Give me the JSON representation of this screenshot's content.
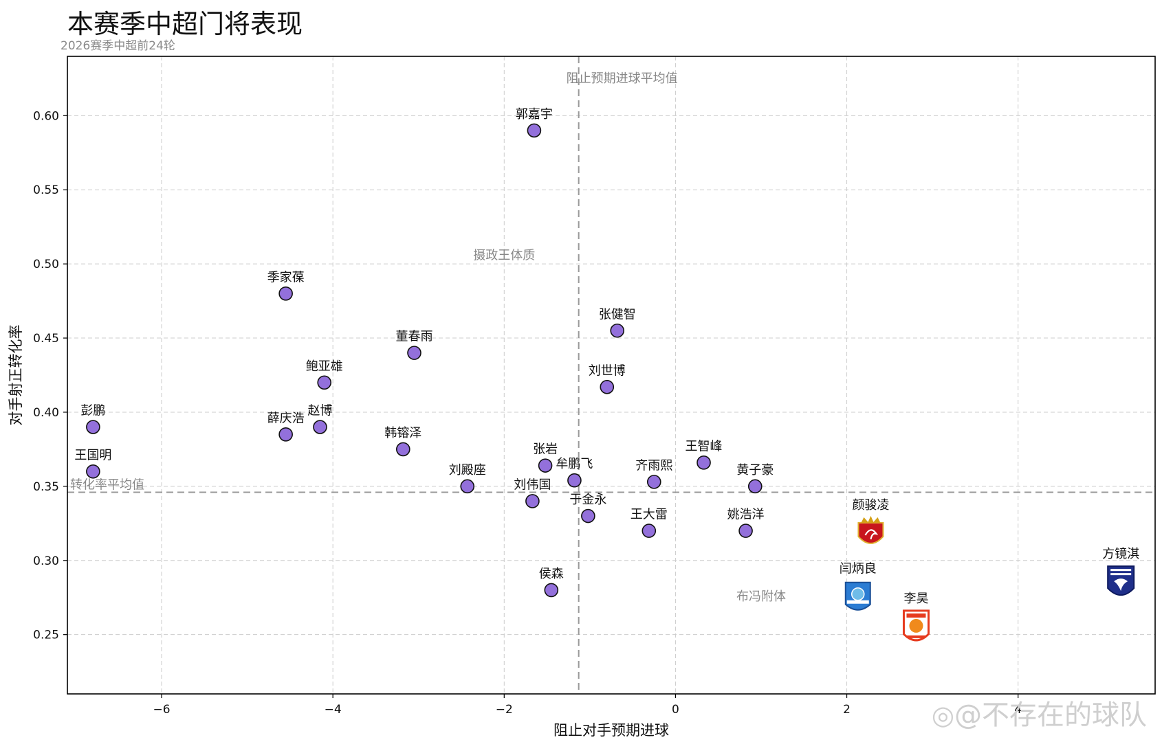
{
  "title": "本赛季中超门将表现",
  "subtitle": "2026赛季中超前24轮",
  "watermark": "@不存在的球队",
  "chart_data": {
    "type": "scatter",
    "title": "本赛季中超门将表现",
    "subtitle": "2026赛季中超前24轮",
    "xlabel": "阻止对手预期进球",
    "ylabel": "对手射正转化率",
    "xlim": [
      -7.1,
      5.6
    ],
    "ylim": [
      0.21,
      0.64
    ],
    "xticks": [
      -6,
      -4,
      -2,
      0,
      2,
      4
    ],
    "xtick_labels": [
      "−6",
      "−4",
      "−2",
      "0",
      "2",
      "4"
    ],
    "yticks": [
      0.25,
      0.3,
      0.35,
      0.4,
      0.45,
      0.5,
      0.55,
      0.6
    ],
    "ytick_labels": [
      "0.25",
      "0.30",
      "0.35",
      "0.40",
      "0.45",
      "0.50",
      "0.55",
      "0.60"
    ],
    "grid": true,
    "reference_lines": {
      "x_mean": -1.13,
      "x_mean_label": "阻止预期进球平均值",
      "y_mean": 0.346,
      "y_mean_label": "转化率平均值"
    },
    "annotations": [
      {
        "text": "摄政王体质",
        "x": -2.0,
        "y": 0.503
      },
      {
        "text": "布冯附体",
        "x": 1.0,
        "y": 0.273
      }
    ],
    "marker_color": "#9370DB",
    "points": [
      {
        "name": "郭嘉宇",
        "x": -1.65,
        "y": 0.59
      },
      {
        "name": "季家葆",
        "x": -4.55,
        "y": 0.48
      },
      {
        "name": "张健智",
        "x": -0.68,
        "y": 0.455
      },
      {
        "name": "董春雨",
        "x": -3.05,
        "y": 0.44
      },
      {
        "name": "鲍亚雄",
        "x": -4.1,
        "y": 0.42
      },
      {
        "name": "刘世博",
        "x": -0.8,
        "y": 0.417
      },
      {
        "name": "彭鹏",
        "x": -6.8,
        "y": 0.39
      },
      {
        "name": "赵博",
        "x": -4.15,
        "y": 0.39
      },
      {
        "name": "薛庆浩",
        "x": -4.55,
        "y": 0.385
      },
      {
        "name": "韩镕泽",
        "x": -3.18,
        "y": 0.375
      },
      {
        "name": "王智峰",
        "x": 0.33,
        "y": 0.366
      },
      {
        "name": "张岩",
        "x": -1.52,
        "y": 0.364
      },
      {
        "name": "王国明",
        "x": -6.8,
        "y": 0.36
      },
      {
        "name": "牟鹏飞",
        "x": -1.18,
        "y": 0.354
      },
      {
        "name": "齐雨熙",
        "x": -0.25,
        "y": 0.353
      },
      {
        "name": "刘殿座",
        "x": -2.43,
        "y": 0.35
      },
      {
        "name": "黄子豪",
        "x": 0.93,
        "y": 0.35
      },
      {
        "name": "刘伟国",
        "x": -1.67,
        "y": 0.34
      },
      {
        "name": "于金永",
        "x": -1.02,
        "y": 0.33
      },
      {
        "name": "王大雷",
        "x": -0.31,
        "y": 0.32
      },
      {
        "name": "姚浩洋",
        "x": 0.82,
        "y": 0.32
      },
      {
        "name": "侯森",
        "x": -1.45,
        "y": 0.28
      },
      {
        "name": "颜骏凌",
        "x": 2.28,
        "y": 0.318,
        "logo": "shanghai-port-logo"
      },
      {
        "name": "闫炳良",
        "x": 2.13,
        "y": 0.275,
        "logo": "shandong-style-logo"
      },
      {
        "name": "李昊",
        "x": 2.81,
        "y": 0.255,
        "logo": "orange-shield-logo"
      },
      {
        "name": "方镜淇",
        "x": 5.2,
        "y": 0.285,
        "logo": "navy-shield-logo"
      }
    ]
  }
}
